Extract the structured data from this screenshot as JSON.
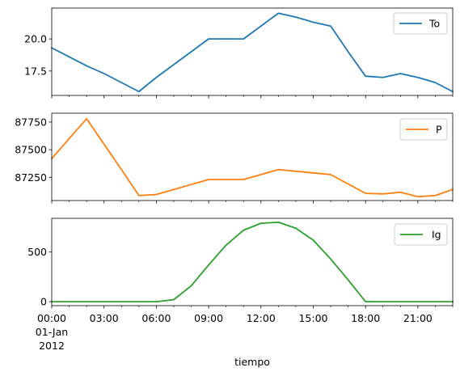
{
  "chart_data": {
    "type": "line",
    "x": [
      "00:00",
      "01:00",
      "02:00",
      "03:00",
      "04:00",
      "05:00",
      "06:00",
      "07:00",
      "08:00",
      "09:00",
      "10:00",
      "11:00",
      "12:00",
      "13:00",
      "14:00",
      "15:00",
      "16:00",
      "17:00",
      "18:00",
      "19:00",
      "20:00",
      "21:00",
      "22:00",
      "23:00"
    ],
    "xlabel": "tiempo",
    "xticks": [
      {
        "hour": 0,
        "label": "00:00"
      },
      {
        "hour": 3,
        "label": "03:00"
      },
      {
        "hour": 6,
        "label": "06:00"
      },
      {
        "hour": 9,
        "label": "09:00"
      },
      {
        "hour": 12,
        "label": "12:00"
      },
      {
        "hour": 15,
        "label": "15:00"
      },
      {
        "hour": 18,
        "label": "18:00"
      },
      {
        "hour": 21,
        "label": "21:00"
      }
    ],
    "date_label": [
      "01-Jan",
      "2012"
    ],
    "legend_position": "upper right",
    "panels": [
      {
        "series": {
          "name": "To",
          "color": "#1f77b4",
          "values": [
            19.3,
            18.6,
            17.9,
            17.3,
            16.6,
            15.9,
            17.0,
            18.0,
            19.0,
            20.0,
            20.0,
            20.0,
            21.0,
            22.0,
            21.7,
            21.3,
            21.0,
            19.0,
            17.1,
            17.0,
            17.3,
            17.0,
            16.6,
            15.9
          ]
        },
        "ylim": [
          15.6,
          22.4
        ],
        "yticks": [
          17.5,
          20.0
        ],
        "ytick_labels": [
          "17.5",
          "20.0"
        ]
      },
      {
        "series": {
          "name": "P",
          "color": "#ff7f0e",
          "values": [
            87420,
            87600,
            87780,
            87550,
            87320,
            87085,
            87095,
            87140,
            87185,
            87230,
            87230,
            87230,
            87275,
            87320,
            87305,
            87290,
            87275,
            87190,
            87105,
            87100,
            87115,
            87075,
            87085,
            87140
          ]
        },
        "ylim": [
          87040,
          87830
        ],
        "yticks": [
          87250,
          87500,
          87750
        ],
        "ytick_labels": [
          "87250",
          "87500",
          "87750"
        ]
      },
      {
        "series": {
          "name": "Ig",
          "color": "#2ca02c",
          "values": [
            0,
            0,
            0,
            0,
            0,
            0,
            0,
            20,
            160,
            370,
            570,
            720,
            790,
            800,
            740,
            620,
            430,
            220,
            0,
            0,
            0,
            0,
            0,
            0
          ]
        },
        "ylim": [
          -40,
          840
        ],
        "yticks": [
          0,
          500
        ],
        "ytick_labels": [
          "0",
          "500"
        ]
      }
    ]
  }
}
